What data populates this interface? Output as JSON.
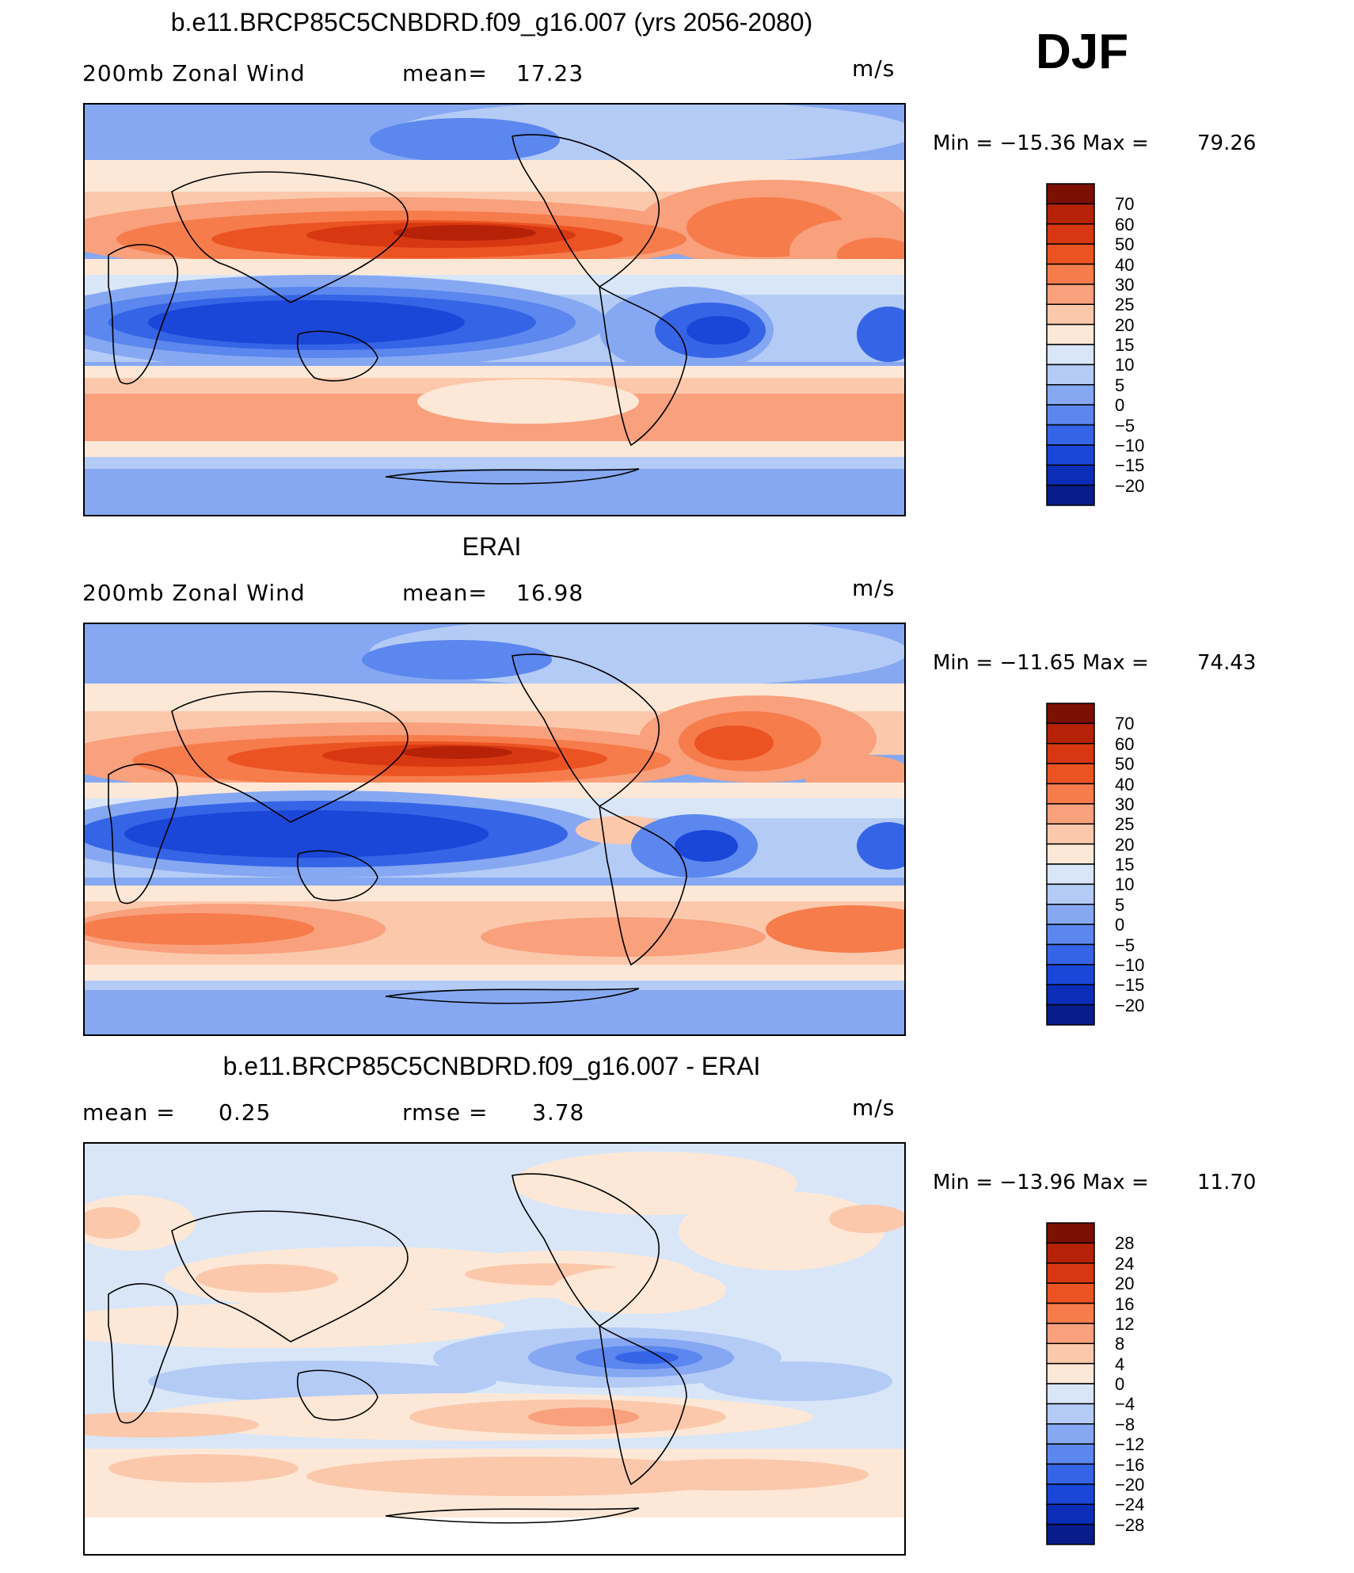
{
  "season": "DJF",
  "units": "m/s",
  "colors": {
    "c-20": "#081d8a",
    "c-15": "#0b2db8",
    "c-10": "#1a47d8",
    "c-5": "#3565e6",
    "c0": "#5b87ee",
    "c5": "#86a8f2",
    "c10": "#b4cbf6",
    "c15": "#d8e6f8",
    "c20": "#fde8d7",
    "c25": "#fbc8ac",
    "c30": "#f9a07c",
    "c40": "#f67c4c",
    "c50": "#ec5323",
    "c60": "#d83811",
    "c70": "#b52207",
    "c80": "#7a0f02"
  },
  "chart_data": [
    {
      "type": "heatmap",
      "title": "b.e11.BRCP85C5CNBDRD.f09_g16.007 (yrs 2056-2080)",
      "left_label": "200mb  Zonal Wind",
      "stat_label": "mean=",
      "stat_value": "17.23",
      "units": "m/s",
      "min_label": "Min  =  −15.36  Max  =",
      "max_value": "79.26",
      "min": -15.36,
      "max": 79.26,
      "mean": 17.23,
      "colorbar_levels": [
        "70",
        "60",
        "50",
        "40",
        "30",
        "25",
        "20",
        "15",
        "10",
        "5",
        "0",
        "−5",
        "−10",
        "−15",
        "−20"
      ]
    },
    {
      "type": "heatmap",
      "title": "ERAI",
      "left_label": "200mb  Zonal Wind",
      "stat_label": "mean=",
      "stat_value": "16.98",
      "units": "m/s",
      "min_label": "Min  =  −11.65  Max  =",
      "max_value": "74.43",
      "min": -11.65,
      "max": 74.43,
      "mean": 16.98,
      "colorbar_levels": [
        "70",
        "60",
        "50",
        "40",
        "30",
        "25",
        "20",
        "15",
        "10",
        "5",
        "0",
        "−5",
        "−10",
        "−15",
        "−20"
      ]
    },
    {
      "type": "heatmap",
      "title": "b.e11.BRCP85C5CNBDRD.f09_g16.007 - ERAI",
      "left_label": "mean  =",
      "left_value": "0.25",
      "stat_label": "rmse  =",
      "stat_value": "3.78",
      "units": "m/s",
      "min_label": "Min  =  −13.96  Max  =",
      "max_value": "11.70",
      "min": -13.96,
      "max": 11.7,
      "mean": 0.25,
      "rmse": 3.78,
      "colorbar_levels": [
        "28",
        "24",
        "20",
        "16",
        "12",
        "8",
        "4",
        "0",
        "−4",
        "−8",
        "−12",
        "−16",
        "−20",
        "−24",
        "−28"
      ]
    }
  ]
}
